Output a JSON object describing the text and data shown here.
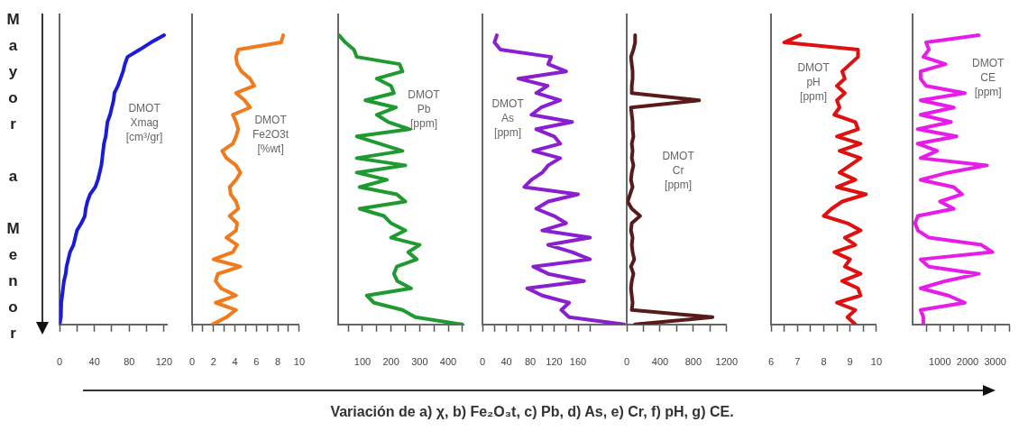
{
  "chart_data": [
    {
      "type": "line",
      "orientation": "horizontal",
      "tick_labels": "x",
      "ylabel": "Mayor a Menor",
      "annotations": [
        "Variación de a) χ, b) Fe₂O₃t, c) Pb, d) As, e) Cr, f) pH, g) CE."
      ],
      "categories": [
        null,
        null,
        null,
        null,
        null,
        null,
        null,
        null,
        null,
        null,
        null,
        null,
        null,
        null,
        null,
        null,
        null,
        null,
        null,
        null,
        null,
        null,
        null,
        null,
        null,
        null,
        null,
        null,
        null,
        null,
        null,
        null,
        null,
        null,
        null,
        null,
        null,
        null,
        null,
        null,
        null
      ],
      "series": [
        {
          "name": "DMOT Xmag [cm³/gr]",
          "color": "#1c1cd8",
          "values": [
            120,
            105,
            92,
            78,
            75,
            73,
            70,
            67,
            63,
            62,
            60,
            58,
            55,
            54,
            53,
            51,
            50,
            49,
            48,
            46,
            44,
            41,
            35,
            32,
            30,
            29,
            25,
            20,
            18,
            16,
            12,
            10,
            8,
            7,
            5,
            4,
            3,
            2,
            2,
            1,
            0
          ]
        }
      ],
      "xlim": [
        0,
        124
      ],
      "xticks": [
        0,
        {
          "value": 20,
          "label": null
        },
        40,
        {
          "value": 60,
          "label": null
        },
        80,
        {
          "value": 100,
          "label": null
        },
        120
      ]
    },
    {
      "type": "line",
      "orientation": "horizontal",
      "tick_labels": "x",
      "categories": [
        null,
        null,
        null,
        null,
        null,
        null,
        null,
        null,
        null,
        null,
        null,
        null,
        null,
        null,
        null,
        null,
        null,
        null,
        null,
        null,
        null,
        null,
        null,
        null,
        null,
        null,
        null,
        null,
        null,
        null,
        null,
        null,
        null,
        null,
        null,
        null,
        null,
        null,
        null,
        null,
        null
      ],
      "series": [
        {
          "name": "DMOT Fe2O3t [%wt]",
          "color": "#f07a1c",
          "values": [
            8.5,
            8.3,
            4.3,
            4.1,
            4.2,
            4.6,
            5.4,
            5.8,
            4.1,
            4.9,
            5.4,
            3.8,
            4.1,
            4.3,
            4.1,
            3.8,
            2.8,
            3.2,
            4.1,
            4.5,
            4.1,
            3.5,
            3.6,
            4.1,
            4.3,
            3.5,
            4.2,
            4.1,
            3.2,
            4.2,
            3.8,
            2.0,
            4.5,
            2.4,
            2.2,
            2.7,
            4.1,
            2.2,
            4.1,
            3.2,
            1.9
          ]
        }
      ],
      "xlim": [
        0,
        10
      ],
      "xticks": [
        0,
        {
          "value": 1,
          "label": null
        },
        2,
        {
          "value": 3,
          "label": null
        },
        4,
        {
          "value": 5,
          "label": null
        },
        6,
        {
          "value": 7,
          "label": null
        },
        8,
        {
          "value": 9,
          "label": null
        },
        10
      ]
    },
    {
      "type": "line",
      "orientation": "horizontal",
      "tick_labels": "x",
      "categories": [
        null,
        null,
        null,
        null,
        null,
        null,
        null,
        null,
        null,
        null,
        null,
        null,
        null,
        null,
        null,
        null,
        null,
        null,
        null,
        null,
        null,
        null,
        null,
        null,
        null,
        null,
        null,
        null,
        null,
        null,
        null,
        null,
        null,
        null,
        null,
        null,
        null,
        null,
        null,
        null,
        null
      ],
      "series": [
        {
          "name": "DMOT Pb [ppm]",
          "color": "#1e9a30",
          "values": [
            18,
            40,
            70,
            80,
            230,
            240,
            150,
            200,
            210,
            110,
            217,
            150,
            190,
            265,
            80,
            160,
            240,
            80,
            250,
            80,
            185,
            90,
            220,
            250,
            90,
            175,
            200,
            250,
            200,
            300,
            260,
            290,
            220,
            210,
            222,
            270,
            115,
            140,
            240,
            285,
            449
          ]
        }
      ],
      "xlim": [
        15,
        455
      ],
      "xticks": [
        {
          "value": 50,
          "label": null
        },
        100,
        {
          "value": 150,
          "label": null
        },
        200,
        {
          "value": 250,
          "label": null
        },
        300,
        {
          "value": 350,
          "label": null
        },
        400,
        {
          "value": 450,
          "label": null
        }
      ]
    },
    {
      "type": "line",
      "orientation": "horizontal",
      "tick_labels": "x",
      "categories": [
        null,
        null,
        null,
        null,
        null,
        null,
        null,
        null,
        null,
        null,
        null,
        null,
        null,
        null,
        null,
        null,
        null,
        null,
        null,
        null,
        null,
        null,
        null,
        null,
        null,
        null,
        null,
        null,
        null,
        null,
        null,
        null,
        null,
        null,
        null,
        null,
        null,
        null,
        null,
        null,
        null
      ],
      "series": [
        {
          "name": "DMOT As [ppm]",
          "color": "#8a1fd0",
          "values": [
            24,
            20,
            30,
            115,
            110,
            140,
            60,
            109,
            90,
            130,
            98,
            82,
            150,
            90,
            120,
            130,
            85,
            130,
            110,
            100,
            82,
            70,
            160,
            110,
            90,
            120,
            140,
            100,
            180,
            110,
            150,
            180,
            85,
            110,
            170,
            75,
            100,
            145,
            132,
            145,
            237
          ]
        }
      ],
      "xlim": [
        0,
        240
      ],
      "xticks": [
        0,
        {
          "value": 20,
          "label": null
        },
        40,
        {
          "value": 60,
          "label": null
        },
        80,
        {
          "value": 100,
          "label": null
        },
        120,
        {
          "value": 140,
          "label": null
        },
        160,
        {
          "value": 180,
          "label": null
        }
      ]
    },
    {
      "type": "line",
      "orientation": "horizontal",
      "tick_labels": "x",
      "categories": [
        null,
        null,
        null,
        null,
        null,
        null,
        null,
        null,
        null,
        null,
        null,
        null,
        null,
        null,
        null,
        null,
        null,
        null,
        null,
        null,
        null,
        null,
        null,
        null,
        null,
        null,
        null,
        null,
        null,
        null,
        null,
        null,
        null,
        null,
        null,
        null,
        null,
        null,
        null,
        null,
        null
      ],
      "series": [
        {
          "name": "DMOT Cr [ppm]",
          "color": "#5a1a1a",
          "values": [
            100,
            100,
            80,
            50,
            60,
            70,
            70,
            60,
            60,
            870,
            50,
            60,
            70,
            70,
            80,
            60,
            70,
            60,
            80,
            60,
            50,
            70,
            40,
            10,
            60,
            160,
            60,
            50,
            70,
            60,
            70,
            90,
            50,
            80,
            60,
            50,
            60,
            70,
            60,
            1030,
            100
          ]
        }
      ],
      "xlim": [
        0,
        1200
      ],
      "xticks": [
        0,
        {
          "value": 200,
          "label": null
        },
        400,
        {
          "value": 600,
          "label": null
        },
        800,
        {
          "value": 1000,
          "label": null
        },
        1200
      ]
    },
    {
      "type": "line",
      "orientation": "horizontal",
      "tick_labels": "x",
      "categories": [
        null,
        null,
        null,
        null,
        null,
        null,
        null,
        null,
        null,
        null,
        null,
        null,
        null,
        null,
        null,
        null,
        null,
        null,
        null,
        null,
        null,
        null,
        null,
        null,
        null,
        null,
        null,
        null,
        null,
        null,
        null,
        null,
        null,
        null,
        null,
        null,
        null,
        null,
        null,
        null,
        null
      ],
      "series": [
        {
          "name": "DMOT pH [ppm]",
          "color": "#e01010",
          "values": [
            7.1,
            6.5,
            9.3,
            9.3,
            9.0,
            8.7,
            8.8,
            8.5,
            8.8,
            8.5,
            8.6,
            8.4,
            9.2,
            9.3,
            8.5,
            9.4,
            8.6,
            9.4,
            9.0,
            8.6,
            9.2,
            8.5,
            9.6,
            8.7,
            8.3,
            8.0,
            8.9,
            9.4,
            8.8,
            9.2,
            8.4,
            9.0,
            8.8,
            9.4,
            8.7,
            9.3,
            9.4,
            8.5,
            9.2,
            8.9,
            9.2
          ]
        }
      ],
      "xlim": [
        6,
        10
      ],
      "xticks": [
        6,
        {
          "value": 6.5,
          "label": null
        },
        7,
        {
          "value": 7.5,
          "label": null
        },
        8,
        {
          "value": 8.5,
          "label": null
        },
        9,
        {
          "value": 9.5,
          "label": null
        },
        10
      ]
    },
    {
      "type": "line",
      "orientation": "horizontal",
      "tick_labels": "x",
      "categories": [
        null,
        null,
        null,
        null,
        null,
        null,
        null,
        null,
        null,
        null,
        null,
        null,
        null,
        null,
        null,
        null,
        null,
        null,
        null,
        null,
        null,
        null,
        null,
        null,
        null,
        null,
        null,
        null,
        null,
        null,
        null,
        null,
        null,
        null,
        null,
        null,
        null,
        null,
        null,
        null,
        null
      ],
      "series": [
        {
          "name": "DMOT CE [ppm]",
          "color": "#e81ce8",
          "values": [
            2400,
            500,
            600,
            400,
            1200,
            300,
            300,
            500,
            1900,
            300,
            1500,
            300,
            1400,
            200,
            1600,
            200,
            900,
            300,
            2700,
            1300,
            300,
            1500,
            1800,
            1000,
            1500,
            200,
            100,
            200,
            600,
            2500,
            2900,
            300,
            600,
            2400,
            1200,
            300,
            1300,
            1900,
            300,
            400,
            400
          ]
        }
      ],
      "xlim": [
        0,
        3500
      ],
      "xticks": [
        {
          "value": 500,
          "label": null
        },
        1000,
        {
          "value": 1500,
          "label": null
        },
        2000,
        {
          "value": 2500,
          "label": null
        },
        3000,
        {
          "value": 3500,
          "label": null
        }
      ]
    }
  ]
}
